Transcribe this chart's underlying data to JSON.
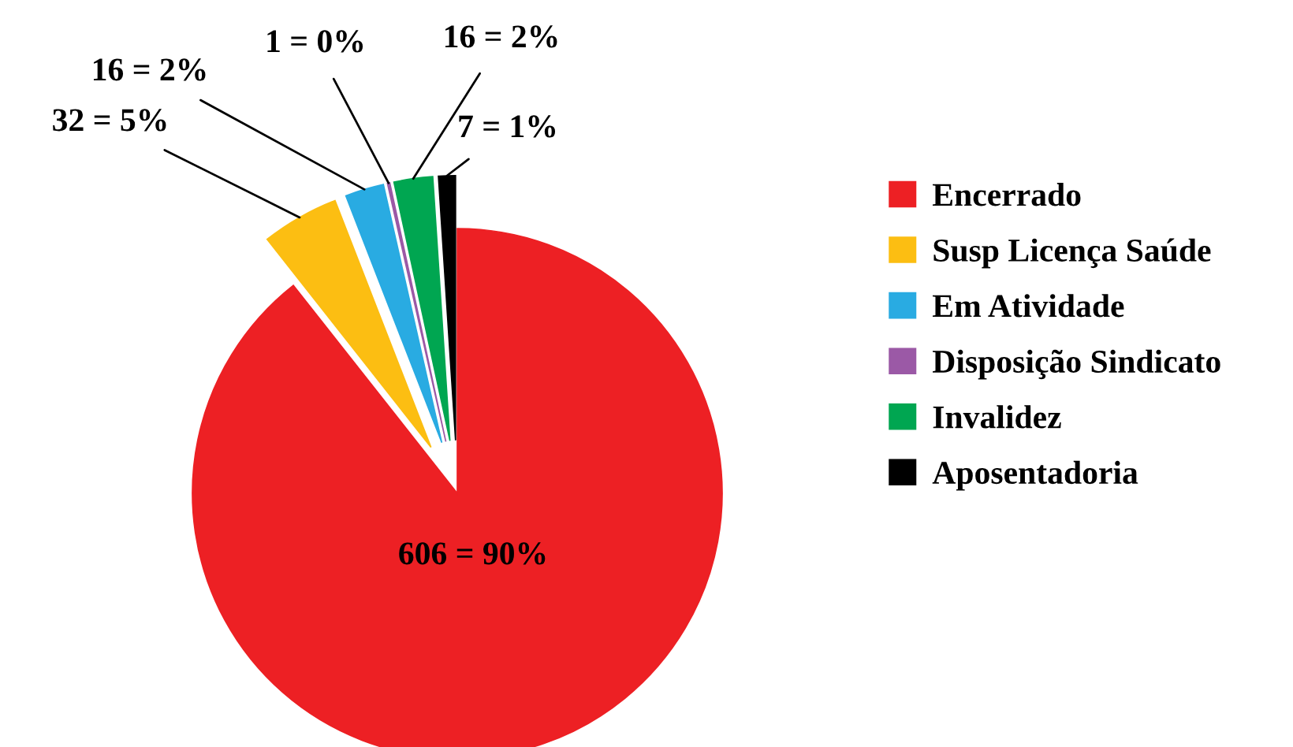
{
  "chart_data": {
    "type": "pie",
    "categories": [
      "Encerrado",
      "Susp Licença Saúde",
      "Em Atividade",
      "Disposição Sindicato",
      "Invalidez",
      "Aposentadoria"
    ],
    "values": [
      606,
      32,
      16,
      1,
      16,
      7
    ],
    "colors": [
      "#ed2024",
      "#fcbe12",
      "#29abe2",
      "#9b59a6",
      "#00a651",
      "#000000"
    ],
    "value_labels": [
      "606 = 90%",
      "32 = 5%",
      "16 = 2%",
      "1 = 0%",
      "16 = 2%",
      "7 = 1%"
    ],
    "legend": "right"
  }
}
